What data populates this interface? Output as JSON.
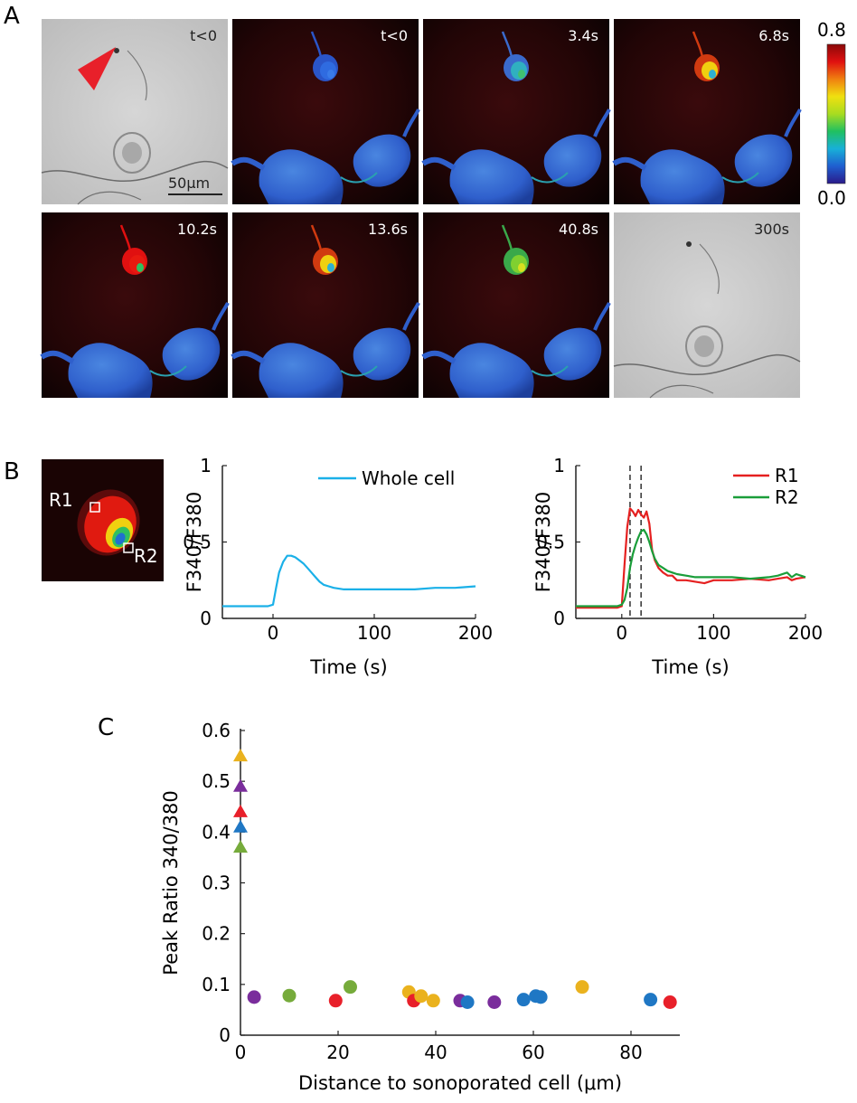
{
  "panel_labels": {
    "a": "A",
    "b": "B",
    "c": "C"
  },
  "panel_a": {
    "frames": [
      {
        "label": "t<0",
        "kind": "brightfield",
        "state": "pre"
      },
      {
        "label": "t<0",
        "kind": "fluorescence",
        "state": "rest"
      },
      {
        "label": "3.4s",
        "kind": "fluorescence",
        "state": "early"
      },
      {
        "label": "6.8s",
        "kind": "fluorescence",
        "state": "mid"
      },
      {
        "label": "10.2s",
        "kind": "fluorescence",
        "state": "peak"
      },
      {
        "label": "13.6s",
        "kind": "fluorescence",
        "state": "mid"
      },
      {
        "label": "40.8s",
        "kind": "fluorescence",
        "state": "late"
      },
      {
        "label": "300s",
        "kind": "brightfield",
        "state": "post"
      }
    ],
    "scale_bar_label": "50μm",
    "colorbar": {
      "max_label": "0.8",
      "min_label": "0.0",
      "max": 0.8,
      "min": 0.0,
      "colors": [
        "#2a1a8a",
        "#1f5fd0",
        "#18b0d8",
        "#20c060",
        "#a8dc20",
        "#f0e010",
        "#f08010",
        "#e01010",
        "#8a0808"
      ]
    },
    "arrow_color": "#e8202a"
  },
  "panel_b": {
    "roi_image": {
      "roi_labels": [
        "R1",
        "R2"
      ]
    },
    "chart_whole": {
      "ylabel": "F340/F380",
      "xlabel": "Time (s)",
      "legend": "Whole cell"
    },
    "chart_regions": {
      "ylabel": "F340/F380",
      "xlabel": "Time (s)",
      "legend": [
        "R1",
        "R2"
      ]
    }
  },
  "panel_c": {
    "xlabel": "Distance to sonoporated cell (μm)",
    "ylabel": "Peak Ratio 340/380"
  },
  "colors": {
    "blue": "#1f77c4",
    "red": "#e8202a",
    "purple": "#7a2d9c",
    "green": "#76ab3b",
    "orange": "#eab21e",
    "cyan": "#1ab0e8",
    "r1": "#e52020",
    "r2": "#1a9e3a"
  },
  "chart_data": [
    {
      "type": "line",
      "x": [
        -50,
        -20,
        -5,
        0,
        3,
        6,
        10,
        14,
        18,
        22,
        26,
        30,
        34,
        38,
        42,
        46,
        50,
        55,
        60,
        70,
        80,
        90,
        100,
        120,
        140,
        160,
        180,
        200
      ],
      "series": [
        {
          "name": "Whole cell",
          "color": "#1ab0e8",
          "values": [
            0.08,
            0.08,
            0.08,
            0.09,
            0.2,
            0.3,
            0.37,
            0.41,
            0.41,
            0.4,
            0.38,
            0.36,
            0.33,
            0.3,
            0.27,
            0.24,
            0.22,
            0.21,
            0.2,
            0.19,
            0.19,
            0.19,
            0.19,
            0.19,
            0.19,
            0.2,
            0.2,
            0.21
          ]
        }
      ],
      "xlabel": "Time (s)",
      "ylabel": "F340/F380",
      "xlim": [
        -50,
        200
      ],
      "ylim": [
        0,
        1
      ],
      "xticks": [
        0,
        100,
        200
      ],
      "yticks": [
        0,
        0.5,
        1
      ],
      "ytick_labels": [
        "0",
        "0.5",
        "1"
      ],
      "legend_position": "top-right"
    },
    {
      "type": "line",
      "x": [
        -50,
        -20,
        -5,
        0,
        3,
        6,
        9,
        12,
        15,
        18,
        21,
        24,
        27,
        30,
        33,
        36,
        40,
        45,
        50,
        55,
        60,
        70,
        80,
        90,
        100,
        120,
        140,
        160,
        170,
        180,
        185,
        190,
        200
      ],
      "series": [
        {
          "name": "R1",
          "color": "#e52020",
          "values": [
            0.07,
            0.07,
            0.07,
            0.08,
            0.35,
            0.6,
            0.72,
            0.7,
            0.67,
            0.71,
            0.68,
            0.66,
            0.7,
            0.62,
            0.45,
            0.38,
            0.33,
            0.3,
            0.28,
            0.28,
            0.25,
            0.25,
            0.24,
            0.23,
            0.25,
            0.25,
            0.26,
            0.25,
            0.26,
            0.27,
            0.25,
            0.26,
            0.27
          ]
        },
        {
          "name": "R2",
          "color": "#1a9e3a",
          "values": [
            0.08,
            0.08,
            0.08,
            0.09,
            0.12,
            0.2,
            0.33,
            0.42,
            0.48,
            0.53,
            0.57,
            0.58,
            0.55,
            0.5,
            0.44,
            0.39,
            0.35,
            0.33,
            0.31,
            0.3,
            0.29,
            0.28,
            0.27,
            0.27,
            0.27,
            0.27,
            0.26,
            0.27,
            0.28,
            0.3,
            0.27,
            0.29,
            0.27
          ]
        }
      ],
      "vlines": [
        9,
        21
      ],
      "xlabel": "Time (s)",
      "ylabel": "F340/F380",
      "xlim": [
        -50,
        200
      ],
      "ylim": [
        0,
        1
      ],
      "xticks": [
        0,
        100,
        200
      ],
      "yticks": [
        0,
        0.5,
        1
      ],
      "ytick_labels": [
        "0",
        "0.5",
        "1"
      ],
      "legend_position": "top-right"
    },
    {
      "type": "scatter",
      "xlabel": "Distance to sonoporated cell (μm)",
      "ylabel": "Peak Ratio 340/380",
      "xlim": [
        0,
        90
      ],
      "ylim": [
        0,
        0.6
      ],
      "xticks": [
        0,
        20,
        40,
        60,
        80
      ],
      "yticks": [
        0,
        0.1,
        0.2,
        0.3,
        0.4,
        0.5,
        0.6
      ],
      "ytick_labels": [
        "0",
        "0.1",
        "0.2",
        "0.3",
        "0.4",
        "0.5",
        "0.6"
      ],
      "points": [
        {
          "x": 0,
          "y": 0.55,
          "shape": "triangle",
          "color": "#eab21e"
        },
        {
          "x": 0,
          "y": 0.49,
          "shape": "triangle",
          "color": "#7a2d9c"
        },
        {
          "x": 0,
          "y": 0.44,
          "shape": "triangle",
          "color": "#e8202a"
        },
        {
          "x": 0,
          "y": 0.41,
          "shape": "triangle",
          "color": "#1f77c4"
        },
        {
          "x": 0,
          "y": 0.37,
          "shape": "triangle",
          "color": "#76ab3b"
        },
        {
          "x": 2.8,
          "y": 0.075,
          "shape": "circle",
          "color": "#7a2d9c"
        },
        {
          "x": 10,
          "y": 0.078,
          "shape": "circle",
          "color": "#76ab3b"
        },
        {
          "x": 19.5,
          "y": 0.068,
          "shape": "circle",
          "color": "#e8202a"
        },
        {
          "x": 22.5,
          "y": 0.095,
          "shape": "circle",
          "color": "#76ab3b"
        },
        {
          "x": 34.5,
          "y": 0.085,
          "shape": "circle",
          "color": "#eab21e"
        },
        {
          "x": 35.5,
          "y": 0.068,
          "shape": "circle",
          "color": "#e8202a"
        },
        {
          "x": 37,
          "y": 0.077,
          "shape": "circle",
          "color": "#eab21e"
        },
        {
          "x": 39.5,
          "y": 0.068,
          "shape": "circle",
          "color": "#eab21e"
        },
        {
          "x": 45,
          "y": 0.068,
          "shape": "circle",
          "color": "#7a2d9c"
        },
        {
          "x": 46.5,
          "y": 0.065,
          "shape": "circle",
          "color": "#1f77c4"
        },
        {
          "x": 52,
          "y": 0.065,
          "shape": "circle",
          "color": "#7a2d9c"
        },
        {
          "x": 58,
          "y": 0.07,
          "shape": "circle",
          "color": "#1f77c4"
        },
        {
          "x": 60.5,
          "y": 0.077,
          "shape": "circle",
          "color": "#1f77c4"
        },
        {
          "x": 61.5,
          "y": 0.075,
          "shape": "circle",
          "color": "#1f77c4"
        },
        {
          "x": 70,
          "y": 0.095,
          "shape": "circle",
          "color": "#eab21e"
        },
        {
          "x": 84,
          "y": 0.07,
          "shape": "circle",
          "color": "#1f77c4"
        },
        {
          "x": 88,
          "y": 0.065,
          "shape": "circle",
          "color": "#e8202a"
        }
      ]
    }
  ]
}
